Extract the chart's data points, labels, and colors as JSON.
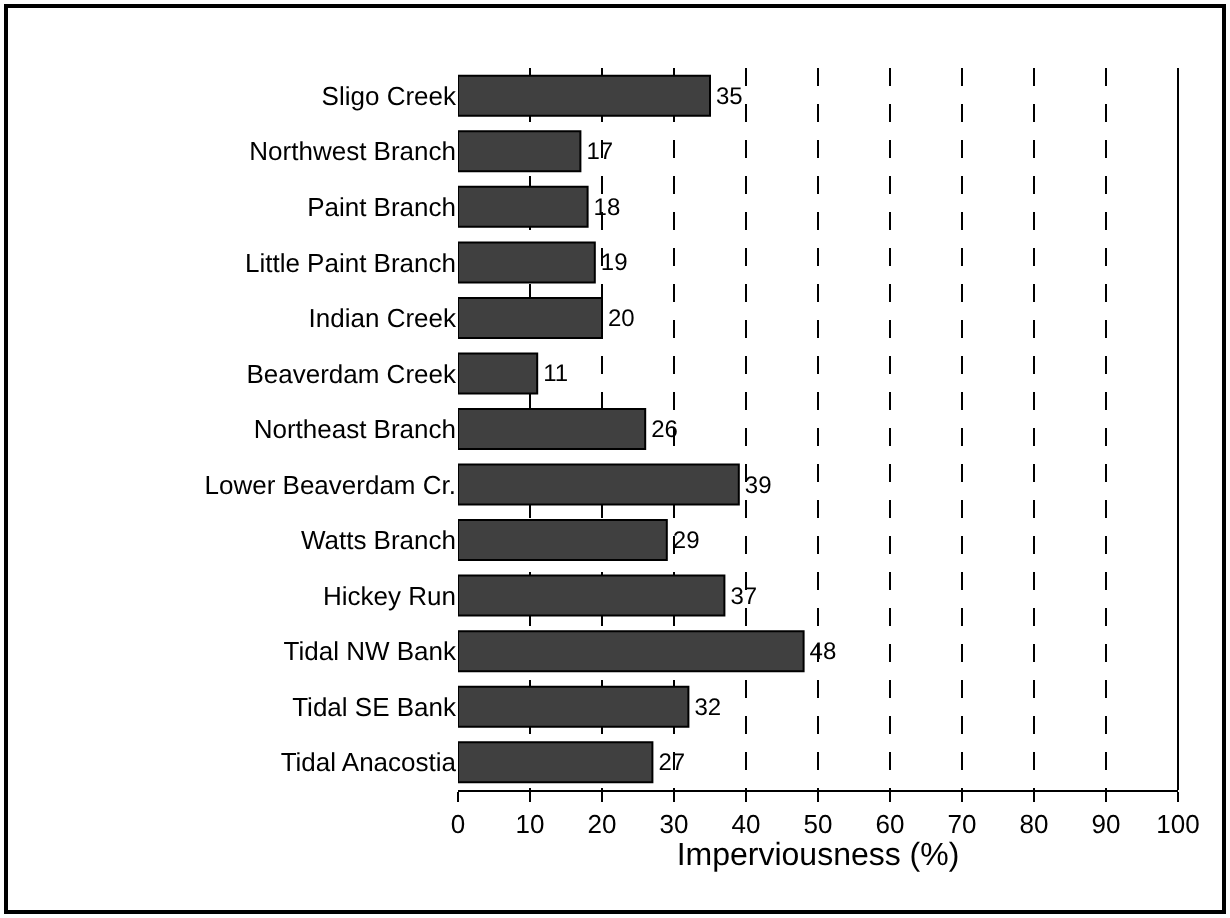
{
  "chart_data": {
    "type": "bar",
    "orientation": "horizontal",
    "xlabel": "Imperviousness (%)",
    "categories": [
      "Sligo Creek",
      "Northwest Branch",
      "Paint Branch",
      "Little Paint Branch",
      "Indian Creek",
      "Beaverdam Creek",
      "Northeast Branch",
      "Lower Beaverdam Cr.",
      "Watts Branch",
      "Hickey Run",
      "Tidal NW Bank",
      "Tidal SE Bank",
      "Tidal Anacostia"
    ],
    "values": [
      35,
      17,
      18,
      19,
      20,
      11,
      26,
      39,
      29,
      37,
      48,
      32,
      27
    ],
    "color": "#404040",
    "xlim": [
      0,
      100
    ],
    "xticks": [
      0,
      10,
      20,
      30,
      40,
      50,
      60,
      70,
      80,
      90,
      100
    ],
    "grid": "x",
    "data_labels": true
  }
}
